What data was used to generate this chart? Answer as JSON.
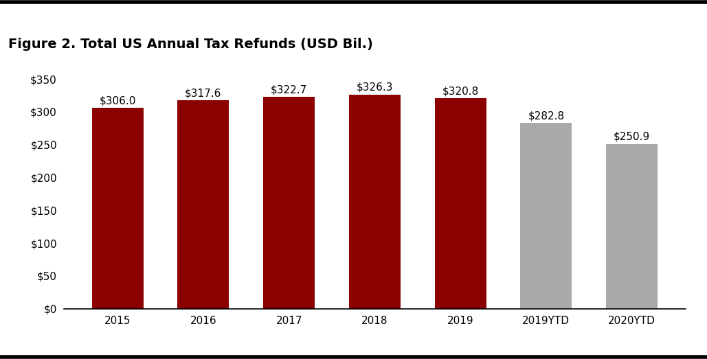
{
  "categories": [
    "2015",
    "2016",
    "2017",
    "2018",
    "2019",
    "2019YTD",
    "2020YTD"
  ],
  "values": [
    306.0,
    317.6,
    322.7,
    326.3,
    320.8,
    282.8,
    250.9
  ],
  "bar_colors": [
    "#8B0000",
    "#8B0000",
    "#8B0000",
    "#8B0000",
    "#8B0000",
    "#A9A9A9",
    "#A9A9A9"
  ],
  "title": "Figure 2. Total US Annual Tax Refunds (USD Bil.)",
  "ylim": [
    0,
    350
  ],
  "yticks": [
    0,
    50,
    100,
    150,
    200,
    250,
    300,
    350
  ],
  "title_fontsize": 14,
  "tick_fontsize": 11,
  "bar_label_fontsize": 11,
  "background_color": "#ffffff",
  "title_color": "#000000",
  "border_color": "#000000",
  "border_linewidth": 4
}
